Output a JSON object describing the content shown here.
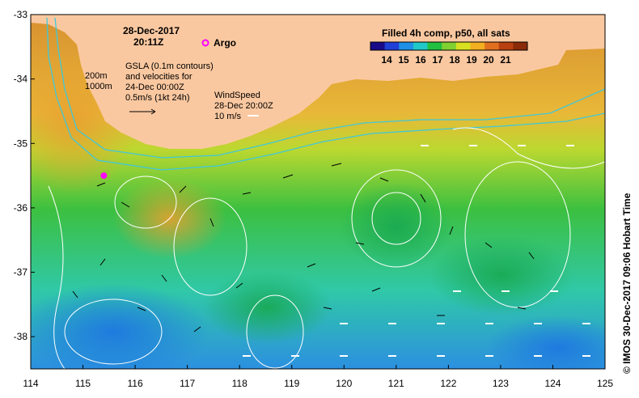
{
  "header": {
    "date": "28-Dec-2017",
    "time": "20:11Z"
  },
  "legend": {
    "title": "Filled 4h comp, p50, all sats",
    "labels": [
      "14",
      "15",
      "16",
      "17",
      "18",
      "19",
      "20",
      "21"
    ],
    "colors": [
      "#1a0a8a",
      "#1f3fd6",
      "#1f8fe8",
      "#20c8c8",
      "#22c040",
      "#7fd030",
      "#d8e020",
      "#f2b020",
      "#e07020",
      "#b84010",
      "#8a2a08"
    ]
  },
  "argo": {
    "label": "Argo",
    "lon": 115.4,
    "lat": -35.5,
    "color": "#ff00ff"
  },
  "bathymetry_labels": {
    "shallow": "200m",
    "deep": "1000m"
  },
  "gsla_note": [
    "GSLA (0.1m contours)",
    "and velocities for",
    "24-Dec 00:00Z",
    "0.5m/s (1kt 24h)"
  ],
  "wind_note": [
    "WindSpeed",
    "28-Dec 20:00Z",
    "10 m/s"
  ],
  "axes": {
    "x_ticks": [
      "114",
      "115",
      "116",
      "117",
      "118",
      "119",
      "120",
      "121",
      "122",
      "123",
      "124",
      "125"
    ],
    "y_ticks": [
      "-33",
      "-34",
      "-35",
      "-36",
      "-37",
      "-38"
    ],
    "xlim": [
      114,
      125
    ],
    "ylim": [
      -38.5,
      -33
    ]
  },
  "credit": "© IMOS 30-Dec-2017 09:06 Hobart Time",
  "colors": {
    "land": "#fac8a0",
    "isobath": "#40c8d8",
    "contour": "#ffffff"
  }
}
